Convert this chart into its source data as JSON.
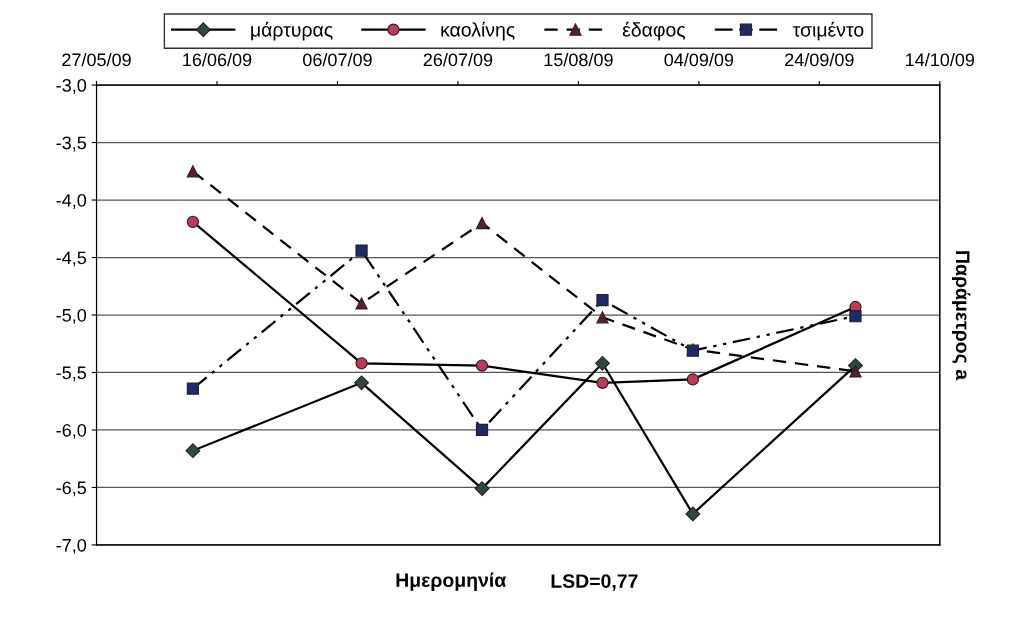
{
  "chart_data": {
    "type": "line",
    "xlabel": "Ημερομηνία",
    "ylabel": "Παράμετρος a",
    "annotations": [
      "LSD=0,77"
    ],
    "x": [
      "2009-06-12",
      "2009-07-10",
      "2009-07-30",
      "2009-08-19",
      "2009-09-03",
      "2009-09-30"
    ],
    "series": [
      {
        "name": "μάρτυρας",
        "color": "#2f4a3c",
        "marker": "diamond",
        "line_style": "solid",
        "values": [
          -6.18,
          -5.59,
          -6.51,
          -5.42,
          -6.73,
          -5.44
        ]
      },
      {
        "name": "καολίνης",
        "color": "#c0395a",
        "marker": "circle",
        "line_style": "solid",
        "values": [
          -4.19,
          -5.42,
          -5.44,
          -5.59,
          -5.56,
          -4.93
        ]
      },
      {
        "name": "έδαφος",
        "color": "#5a1f2a",
        "marker": "triangle",
        "line_style": "dashed",
        "values": [
          -3.75,
          -4.9,
          -4.2,
          -5.02,
          -5.3,
          -5.49
        ]
      },
      {
        "name": "τσιμέντο",
        "color": "#1f2a6e",
        "marker": "square",
        "line_style": "dashdotdot",
        "values": [
          -5.64,
          -4.44,
          -6.0,
          -4.87,
          -5.31,
          -5.01
        ]
      }
    ],
    "xlim": [
      "2009-05-27",
      "2009-10-14"
    ],
    "xticks": [
      {
        "value": "2009-05-27",
        "label": "27/05/09"
      },
      {
        "value": "2009-06-16",
        "label": "16/06/09"
      },
      {
        "value": "2009-07-06",
        "label": "06/07/09"
      },
      {
        "value": "2009-07-26",
        "label": "26/07/09"
      },
      {
        "value": "2009-08-15",
        "label": "15/08/09"
      },
      {
        "value": "2009-09-04",
        "label": "04/09/09"
      },
      {
        "value": "2009-09-24",
        "label": "24/09/09"
      },
      {
        "value": "2009-10-14",
        "label": "14/10/09"
      }
    ],
    "ylim": [
      -7.0,
      -3.0
    ],
    "yticks": [
      {
        "value": -7.0,
        "label": "-7,0"
      },
      {
        "value": -6.5,
        "label": "-6,5"
      },
      {
        "value": -6.0,
        "label": "-6,0"
      },
      {
        "value": -5.5,
        "label": "-5,5"
      },
      {
        "value": -5.0,
        "label": "-5,0"
      },
      {
        "value": -4.5,
        "label": "-4,5"
      },
      {
        "value": -4.0,
        "label": "-4,0"
      },
      {
        "value": -3.5,
        "label": "-3,5"
      },
      {
        "value": -3.0,
        "label": "-3,0"
      }
    ],
    "grid": "y",
    "legend": "top"
  }
}
